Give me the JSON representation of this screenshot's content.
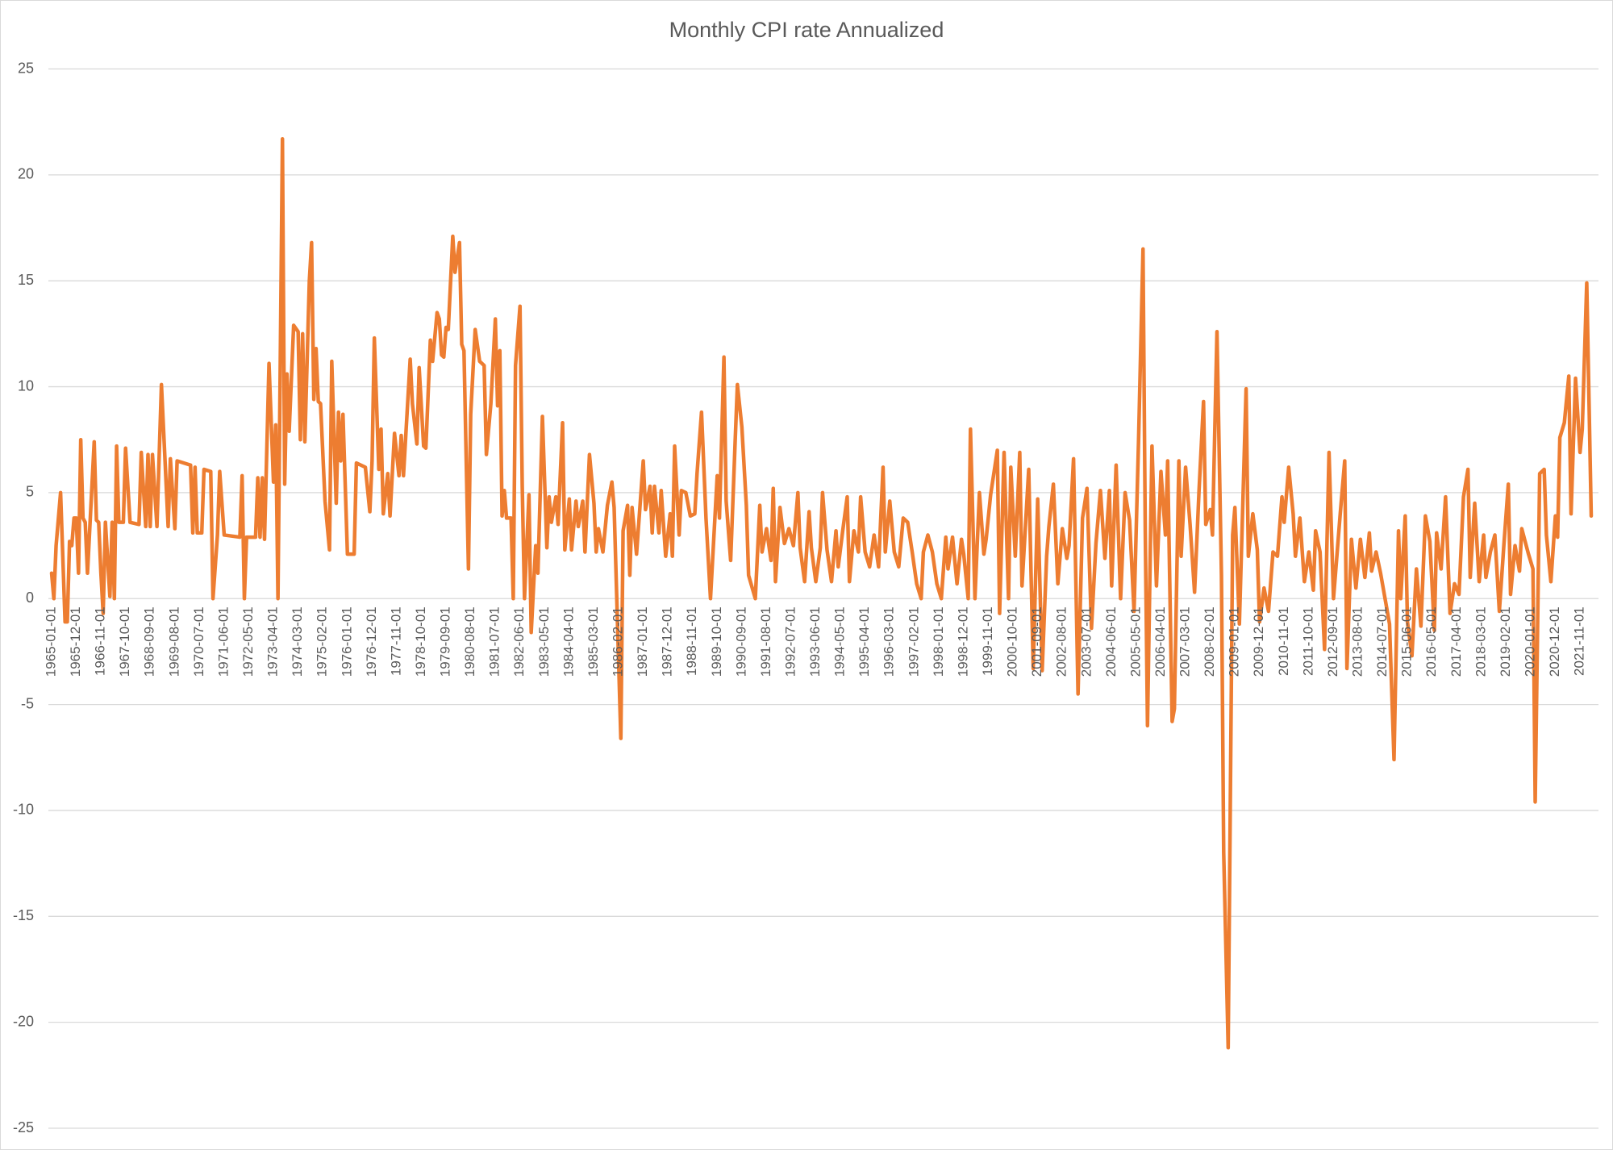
{
  "chart_data": {
    "type": "line",
    "title": "Monthly CPI rate Annualized",
    "color": "#ed7d31",
    "grid": true,
    "xlim": [
      "1965-01-01",
      "2022-04-01"
    ],
    "ylim": [
      -25,
      25
    ],
    "yticks": [
      -25,
      -20,
      -15,
      -10,
      -5,
      0,
      5,
      10,
      15,
      20,
      25
    ],
    "xticks": [
      "1965-01-01",
      "1965-12-01",
      "1966-11-01",
      "1967-10-01",
      "1968-09-01",
      "1969-08-01",
      "1970-07-01",
      "1971-06-01",
      "1972-05-01",
      "1973-04-01",
      "1974-03-01",
      "1975-02-01",
      "1976-01-01",
      "1976-12-01",
      "1977-11-01",
      "1978-10-01",
      "1979-09-01",
      "1980-08-01",
      "1981-07-01",
      "1982-06-01",
      "1983-05-01",
      "1984-04-01",
      "1985-03-01",
      "1986-02-01",
      "1987-01-01",
      "1987-12-01",
      "1988-11-01",
      "1989-10-01",
      "1990-09-01",
      "1991-08-01",
      "1992-07-01",
      "1993-06-01",
      "1994-05-01",
      "1995-04-01",
      "1996-03-01",
      "1997-02-01",
      "1998-01-01",
      "1998-12-01",
      "1999-11-01",
      "2000-10-01",
      "2001-09-01",
      "2002-08-01",
      "2003-07-01",
      "2004-06-01",
      "2005-05-01",
      "2006-04-01",
      "2007-03-01",
      "2008-02-01",
      "2009-01-01",
      "2009-12-01",
      "2010-11-01",
      "2011-10-01",
      "2012-09-01",
      "2013-08-01",
      "2014-07-01",
      "2015-06-01",
      "2016-05-01",
      "2017-04-01",
      "2018-03-01",
      "2019-02-01",
      "2020-01-01",
      "2020-12-01",
      "2021-11-01"
    ],
    "x": [
      "1965-01-01",
      "1965-02-01",
      "1965-03-01",
      "1965-05-01",
      "1965-07-01",
      "1965-08-01",
      "1965-09-01",
      "1965-10-01",
      "1965-11-01",
      "1965-12-01",
      "1966-01-01",
      "1966-02-01",
      "1966-03-01",
      "1966-04-01",
      "1966-05-01",
      "1966-08-01",
      "1966-09-01",
      "1966-10-01",
      "1966-11-01",
      "1966-12-01",
      "1967-01-01",
      "1967-03-01",
      "1967-04-01",
      "1967-05-01",
      "1967-06-01",
      "1967-07-01",
      "1967-09-01",
      "1967-10-01",
      "1967-12-01",
      "1968-04-01",
      "1968-05-01",
      "1968-07-01",
      "1968-08-01",
      "1968-09-01",
      "1968-10-01",
      "1968-12-01",
      "1969-02-01",
      "1969-05-01",
      "1969-06-01",
      "1969-08-01",
      "1969-09-01",
      "1970-03-01",
      "1970-04-01",
      "1970-05-01",
      "1970-06-01",
      "1970-08-01",
      "1970-09-01",
      "1970-12-01",
      "1971-01-01",
      "1971-03-01",
      "1971-04-01",
      "1971-06-01",
      "1972-01-01",
      "1972-02-01",
      "1972-03-01",
      "1972-04-01",
      "1972-08-01",
      "1972-09-01",
      "1972-10-01",
      "1972-11-01",
      "1972-12-01",
      "1973-02-01",
      "1973-04-01",
      "1973-05-01",
      "1973-06-01",
      "1973-08-01",
      "1973-09-01",
      "1973-10-01",
      "1973-11-01",
      "1974-01-01",
      "1974-03-01",
      "1974-04-01",
      "1974-05-01",
      "1974-06-01",
      "1974-08-01",
      "1974-09-01",
      "1974-10-01",
      "1974-11-01",
      "1974-12-01",
      "1975-01-01",
      "1975-03-01",
      "1975-05-01",
      "1975-06-01",
      "1975-08-01",
      "1975-09-01",
      "1975-10-01",
      "1975-11-01",
      "1976-01-01",
      "1976-04-01",
      "1976-05-01",
      "1976-09-01",
      "1976-11-01",
      "1976-12-01",
      "1977-01-01",
      "1977-03-01",
      "1977-04-01",
      "1977-05-01",
      "1977-07-01",
      "1977-08-01",
      "1977-10-01",
      "1977-12-01",
      "1978-01-01",
      "1978-02-01",
      "1978-05-01",
      "1978-06-01",
      "1978-08-01",
      "1978-09-01",
      "1978-11-01",
      "1978-12-01",
      "1979-02-01",
      "1979-03-01",
      "1979-05-01",
      "1979-06-01",
      "1979-07-01",
      "1979-08-01",
      "1979-09-01",
      "1979-10-01",
      "1979-12-01",
      "1980-01-01",
      "1980-03-01",
      "1980-04-01",
      "1980-05-01",
      "1980-07-01",
      "1980-08-01",
      "1980-10-01",
      "1980-12-01",
      "1981-02-01",
      "1981-03-01",
      "1981-05-01",
      "1981-07-01",
      "1981-08-01",
      "1981-09-01",
      "1981-10-01",
      "1981-11-01",
      "1981-12-01",
      "1982-02-01",
      "1982-03-01",
      "1982-04-01",
      "1982-06-01",
      "1982-07-01",
      "1982-08-01",
      "1982-10-01",
      "1982-11-01",
      "1983-01-01",
      "1983-02-01",
      "1983-04-01",
      "1983-06-01",
      "1983-07-01",
      "1983-08-01",
      "1983-10-01",
      "1983-11-01",
      "1984-01-01",
      "1984-02-01",
      "1984-04-01",
      "1984-05-01",
      "1984-07-01",
      "1984-08-01",
      "1984-10-01",
      "1984-11-01",
      "1985-01-01",
      "1985-03-01",
      "1985-04-01",
      "1985-05-01",
      "1985-07-01",
      "1985-09-01",
      "1985-11-01",
      "1985-12-01",
      "1986-03-01",
      "1986-04-01",
      "1986-06-01",
      "1986-07-01",
      "1986-08-01",
      "1986-10-01",
      "1987-01-01",
      "1987-02-01",
      "1987-04-01",
      "1987-05-01",
      "1987-06-01",
      "1987-08-01",
      "1987-09-01",
      "1987-11-01",
      "1988-01-01",
      "1988-02-01",
      "1988-03-01",
      "1988-05-01",
      "1988-06-01",
      "1988-08-01",
      "1988-10-01",
      "1988-12-01",
      "1989-01-01",
      "1989-03-01",
      "1989-05-01",
      "1989-07-01",
      "1989-10-01",
      "1989-11-01",
      "1990-01-01",
      "1990-02-01",
      "1990-04-01",
      "1990-06-01",
      "1990-07-01",
      "1990-09-01",
      "1990-11-01",
      "1990-12-01",
      "1991-03-01",
      "1991-05-01",
      "1991-06-01",
      "1991-08-01",
      "1991-10-01",
      "1991-11-01",
      "1991-12-01",
      "1992-02-01",
      "1992-04-01",
      "1992-06-01",
      "1992-08-01",
      "1992-10-01",
      "1992-11-01",
      "1993-01-01",
      "1993-03-01",
      "1993-04-01",
      "1993-06-01",
      "1993-08-01",
      "1993-09-01",
      "1993-11-01",
      "1994-01-01",
      "1994-03-01",
      "1994-04-01",
      "1994-06-01",
      "1994-08-01",
      "1994-09-01",
      "1994-11-01",
      "1995-01-01",
      "1995-02-01",
      "1995-04-01",
      "1995-06-01",
      "1995-08-01",
      "1995-10-01",
      "1995-12-01",
      "1996-01-01",
      "1996-03-01",
      "1996-05-01",
      "1996-07-01",
      "1996-09-01",
      "1996-11-01",
      "1997-01-01",
      "1997-03-01",
      "1997-05-01",
      "1997-06-01",
      "1997-08-01",
      "1997-10-01",
      "1997-12-01",
      "1998-02-01",
      "1998-04-01",
      "1998-05-01",
      "1998-07-01",
      "1998-09-01",
      "1998-11-01",
      "1998-12-01",
      "1999-02-01",
      "1999-03-01",
      "1999-05-01",
      "1999-07-01",
      "1999-09-01",
      "1999-10-01",
      "1999-12-01",
      "2000-03-01",
      "2000-04-01",
      "2000-06-01",
      "2000-08-01",
      "2000-09-01",
      "2000-11-01",
      "2001-01-01",
      "2001-02-01",
      "2001-05-01",
      "2001-07-01",
      "2001-09-01",
      "2001-11-01",
      "2002-01-01",
      "2002-02-01",
      "2002-04-01",
      "2002-06-01",
      "2002-08-01",
      "2002-10-01",
      "2002-11-01",
      "2003-01-01",
      "2003-03-01",
      "2003-05-01",
      "2003-07-01",
      "2003-09-01",
      "2003-11-01",
      "2004-01-01",
      "2004-03-01",
      "2004-05-01",
      "2004-06-01",
      "2004-08-01",
      "2004-10-01",
      "2004-12-01",
      "2005-02-01",
      "2005-04-01",
      "2005-06-01",
      "2005-08-01",
      "2005-09-01",
      "2005-10-01",
      "2005-12-01",
      "2006-02-01",
      "2006-04-01",
      "2006-06-01",
      "2006-07-01",
      "2006-09-01",
      "2006-10-01",
      "2006-12-01",
      "2007-01-01",
      "2007-03-01",
      "2007-05-01",
      "2007-07-01",
      "2007-09-01",
      "2007-11-01",
      "2007-12-01",
      "2008-02-01",
      "2008-03-01",
      "2008-05-01",
      "2008-07-01",
      "2008-08-01",
      "2008-10-01",
      "2008-12-01",
      "2009-01-01",
      "2009-03-01",
      "2009-06-01",
      "2009-07-01",
      "2009-09-01",
      "2009-11-01",
      "2009-12-01",
      "2010-02-01",
      "2010-04-01",
      "2010-06-01",
      "2010-08-01",
      "2010-10-01",
      "2010-11-01",
      "2011-01-01",
      "2011-03-01",
      "2011-04-01",
      "2011-06-01",
      "2011-08-01",
      "2011-10-01",
      "2011-12-01",
      "2012-01-01",
      "2012-03-01",
      "2012-05-01",
      "2012-07-01",
      "2012-09-01",
      "2012-12-01",
      "2013-02-01",
      "2013-03-01",
      "2013-05-01",
      "2013-07-01",
      "2013-09-01",
      "2013-11-01",
      "2014-01-01",
      "2014-02-01",
      "2014-04-01",
      "2014-06-01",
      "2014-08-01",
      "2014-10-01",
      "2014-12-01",
      "2015-02-01",
      "2015-03-01",
      "2015-05-01",
      "2015-06-01",
      "2015-08-01",
      "2015-10-01",
      "2015-12-01",
      "2016-02-01",
      "2016-04-01",
      "2016-06-01",
      "2016-07-01",
      "2016-09-01",
      "2016-11-01",
      "2017-01-01",
      "2017-03-01",
      "2017-05-01",
      "2017-07-01",
      "2017-09-01",
      "2017-10-01",
      "2017-12-01",
      "2018-02-01",
      "2018-04-01",
      "2018-05-01",
      "2018-07-01",
      "2018-09-01",
      "2018-11-01",
      "2019-01-01",
      "2019-03-01",
      "2019-04-01",
      "2019-06-01",
      "2019-08-01",
      "2019-09-01",
      "2019-12-01",
      "2020-02-01",
      "2020-03-01",
      "2020-05-01",
      "2020-07-01",
      "2020-08-01",
      "2020-10-01",
      "2020-12-01",
      "2021-01-01",
      "2021-02-01",
      "2021-04-01",
      "2021-06-01",
      "2021-07-01",
      "2021-09-01",
      "2021-11-01",
      "2021-12-01",
      "2022-02-01",
      "2022-04-01"
    ],
    "values": [
      1.2,
      0,
      2.5,
      5,
      -1.1,
      -1.1,
      2.7,
      2.5,
      3.8,
      3.8,
      1.2,
      7.5,
      3.8,
      3.6,
      1.2,
      7.4,
      3.7,
      3.6,
      1.2,
      -0.7,
      3.6,
      0.1,
      3.6,
      0,
      7.2,
      3.6,
      3.6,
      7.1,
      3.6,
      3.5,
      6.9,
      3.4,
      6.8,
      3.4,
      6.8,
      3.4,
      10.1,
      3.4,
      6.6,
      3.3,
      6.5,
      6.3,
      3.1,
      6.2,
      3.1,
      3.1,
      6.1,
      6.0,
      0,
      3.0,
      6.0,
      3.0,
      2.9,
      5.8,
      0,
      2.9,
      2.9,
      5.7,
      2.9,
      5.7,
      2.8,
      11.1,
      5.5,
      8.2,
      0,
      21.7,
      5.4,
      10.6,
      7.9,
      12.9,
      12.6,
      7.5,
      12.5,
      7.4,
      15,
      16.8,
      9.4,
      11.8,
      9.3,
      9.2,
      4.6,
      2.3,
      11.2,
      4.5,
      8.8,
      6.5,
      8.7,
      2.1,
      2.1,
      6.4,
      6.2,
      4.1,
      6.5,
      12.3,
      6.1,
      8.0,
      4.0,
      5.9,
      3.9,
      7.8,
      5.8,
      7.7,
      5.8,
      11.3,
      9.2,
      7.3,
      10.9,
      7.2,
      7.1,
      12.2,
      11.2,
      13.5,
      13.2,
      11.5,
      11.4,
      12.8,
      12.7,
      17.1,
      15.4,
      16.8,
      12.0,
      11.7,
      1.4,
      8.7,
      12.7,
      11.2,
      11.0,
      6.8,
      9.2,
      13.2,
      9.1,
      11.7,
      3.9,
      5.1,
      3.8,
      3.8,
      0,
      11.0,
      13.8,
      5.3,
      0,
      4.9,
      -1.6,
      2.5,
      1.2,
      8.6,
      2.4,
      4.8,
      3.6,
      4.8,
      3.5,
      8.3,
      2.3,
      4.7,
      2.3,
      4.6,
      3.4,
      4.6,
      2.2,
      6.8,
      4.5,
      2.2,
      3.3,
      2.2,
      4.4,
      5.5,
      4.3,
      -6.6,
      3.2,
      4.4,
      1.1,
      4.3,
      2.1,
      6.5,
      4.2,
      5.3,
      3.1,
      5.3,
      3.1,
      5.1,
      2.0,
      4.0,
      2.0,
      7.2,
      3.0,
      5.1,
      5.0,
      3.9,
      4.0,
      5.9,
      8.8,
      3.8,
      0,
      5.8,
      3.8,
      11.4,
      4.6,
      1.8,
      7.4,
      10.1,
      8.1,
      4.4,
      1.1,
      0,
      4.4,
      2.2,
      3.3,
      1.8,
      5.2,
      0.8,
      4.3,
      2.6,
      3.3,
      2.5,
      5.0,
      2.4,
      0.8,
      4.1,
      2.4,
      0.8,
      2.4,
      5.0,
      2.3,
      0.8,
      3.2,
      1.5,
      3.2,
      4.8,
      0.8,
      3.2,
      2.2,
      4.8,
      2.2,
      1.5,
      3.0,
      1.5,
      6.2,
      2.2,
      4.6,
      2.2,
      1.5,
      3.8,
      3.6,
      2.2,
      0.7,
      0,
      2.2,
      3.0,
      2.2,
      0.7,
      0,
      2.9,
      1.4,
      2.9,
      0.7,
      2.8,
      2.1,
      0,
      8.0,
      0,
      5.0,
      2.1,
      2.8,
      4.9,
      7.0,
      -0.7,
      6.9,
      0,
      6.2,
      2.0,
      6.9,
      0.6,
      6.1,
      -3.3,
      4.7,
      -3.4,
      2.0,
      3.4,
      5.4,
      0.7,
      3.3,
      1.9,
      2.5,
      6.6,
      -4.5,
      3.8,
      5.2,
      -1.4,
      2.6,
      5.1,
      1.9,
      5.1,
      0.6,
      6.3,
      0,
      5.0,
      3.7,
      -0.6,
      7.4,
      16.5,
      3.2,
      -6.0,
      7.2,
      0.6,
      6.0,
      3.0,
      6.5,
      -5.8,
      -5.2,
      6.5,
      2.0,
      6.2,
      3.5,
      0.3,
      5.1,
      9.3,
      3.5,
      4.2,
      3.0,
      12.6,
      1.1,
      -12,
      -21.2,
      3.0,
      4.3,
      -1.2,
      9.9,
      2.0,
      4.0,
      2.3,
      -1.1,
      0.5,
      -0.6,
      2.2,
      2.0,
      4.8,
      3.6,
      6.2,
      4.0,
      2.0,
      3.8,
      0.8,
      2.2,
      0.4,
      3.2,
      2.2,
      -2.4,
      6.9,
      0,
      4.0,
      6.5,
      -3.3,
      2.8,
      0.5,
      2.8,
      1.0,
      3.1,
      1.3,
      2.2,
      1.2,
      0,
      -1.2,
      -7.6,
      3.2,
      0,
      3.9,
      -1.1,
      -2.7,
      1.4,
      -1.3,
      3.9,
      2.7,
      -1.5,
      3.1,
      1.4,
      4.8,
      -0.7,
      0.7,
      0.2,
      4.8,
      6.1,
      1.0,
      4.5,
      0.8,
      3.0,
      1.0,
      2.2,
      3.0,
      -0.6,
      2.5,
      5.4,
      0.2,
      2.5,
      1.3,
      3.3,
      2.1,
      1.4,
      -9.6,
      5.9,
      6.1,
      3.0,
      0.8,
      3.9,
      2.9,
      7.6,
      8.3,
      10.5,
      4.0,
      10.4,
      6.9,
      8.0,
      14.9,
      3.9
    ]
  }
}
